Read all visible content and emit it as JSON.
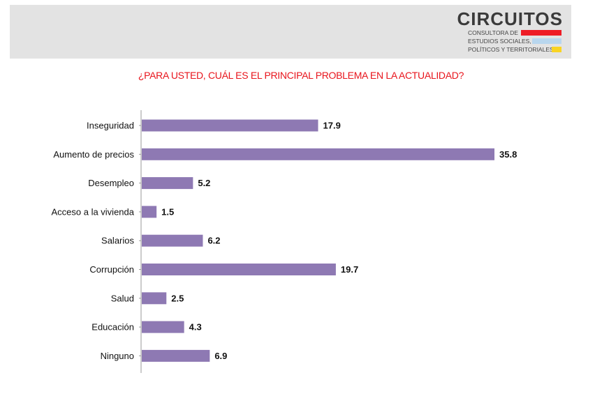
{
  "logo": {
    "title": "CIRCUITOS",
    "lines": [
      "CONSULTORA DE",
      "ESTUDIOS SOCIALES,",
      "POLÍTICOS Y TERRITORIALES"
    ],
    "bar_colors": [
      "#ee1c25",
      "#b8d6ee",
      "#f9d423"
    ]
  },
  "colors": {
    "title": "#e8141c",
    "bar": "#8e79b3",
    "axis": "#999999",
    "text": "#111111"
  },
  "chart_data": {
    "type": "bar",
    "orientation": "horizontal",
    "title": "¿PARA USTED, CUÁL ES EL PRINCIPAL PROBLEMA EN LA ACTUALIDAD?",
    "categories": [
      "Inseguridad",
      "Aumento de precios",
      "Desempleo",
      "Acceso a la vivienda",
      "Salarios",
      "Corrupción",
      "Salud",
      "Educación",
      "Ninguno"
    ],
    "values": [
      17.9,
      35.8,
      5.2,
      1.5,
      6.2,
      19.7,
      2.5,
      4.3,
      6.9
    ],
    "value_labels": [
      "17.9",
      "35.8",
      "5.2",
      "1.5",
      "6.2",
      "19.7",
      "2.5",
      "4.3",
      "6.9"
    ],
    "xlim": [
      0,
      35.8
    ],
    "grid": false,
    "legend": "none"
  }
}
